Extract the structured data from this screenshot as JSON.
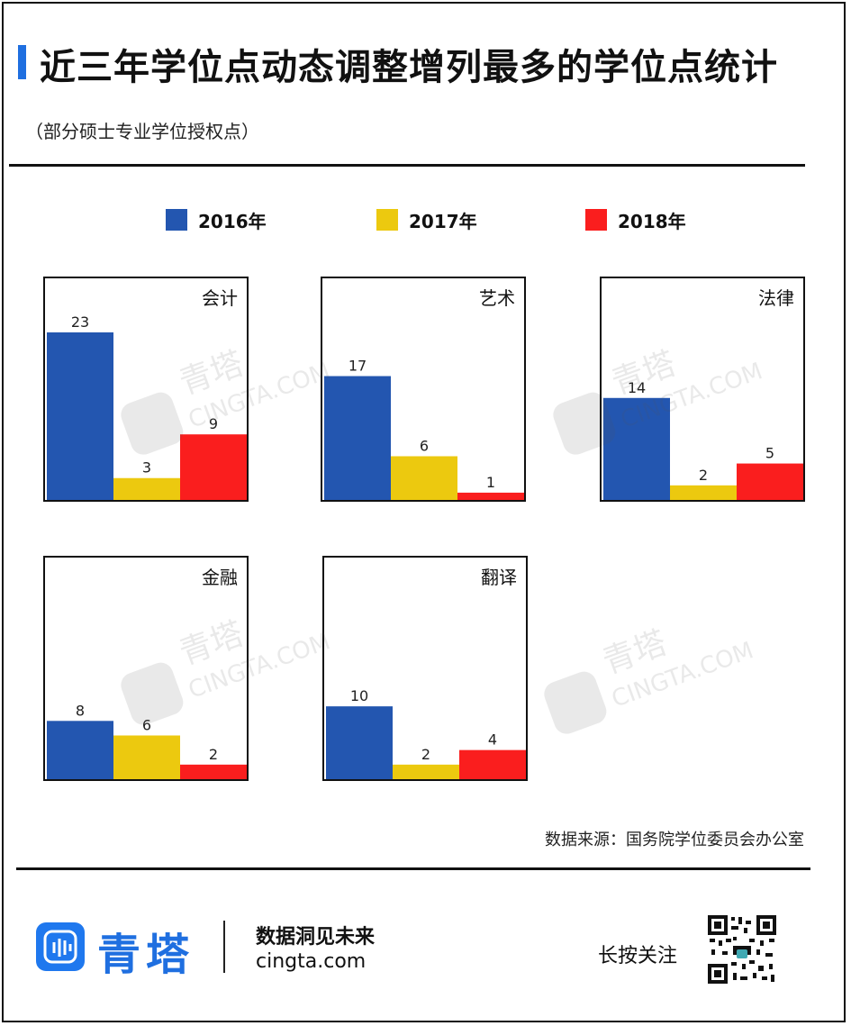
{
  "header": {
    "title": "近三年学位点动态调整增列最多的学位点统计",
    "subtitle": "（部分硕士专业学位授权点）"
  },
  "legend": [
    {
      "label": "2016年",
      "color": "#2356b0"
    },
    {
      "label": "2017年",
      "color": "#ecc90f"
    },
    {
      "label": "2018年",
      "color": "#fa1e1e"
    }
  ],
  "chart_data": [
    {
      "type": "bar",
      "title": "会计",
      "categories": [
        "2016年",
        "2017年",
        "2018年"
      ],
      "values": [
        23,
        3,
        9
      ]
    },
    {
      "type": "bar",
      "title": "艺术",
      "categories": [
        "2016年",
        "2017年",
        "2018年"
      ],
      "values": [
        17,
        6,
        1
      ]
    },
    {
      "type": "bar",
      "title": "法律",
      "categories": [
        "2016年",
        "2017年",
        "2018年"
      ],
      "values": [
        14,
        2,
        5
      ]
    },
    {
      "type": "bar",
      "title": "金融",
      "categories": [
        "2016年",
        "2017年",
        "2018年"
      ],
      "values": [
        8,
        6,
        2
      ]
    },
    {
      "type": "bar",
      "title": "翻译",
      "categories": [
        "2016年",
        "2017年",
        "2018年"
      ],
      "values": [
        10,
        2,
        4
      ]
    }
  ],
  "source": "数据来源：国务院学位委员会办公室",
  "footer": {
    "logo_text": "青塔",
    "slogan": "数据洞见未来",
    "site": "cingta.com",
    "press_text": "长按关注"
  },
  "watermark": {
    "text": "青塔",
    "site": "CINGTA.COM"
  }
}
